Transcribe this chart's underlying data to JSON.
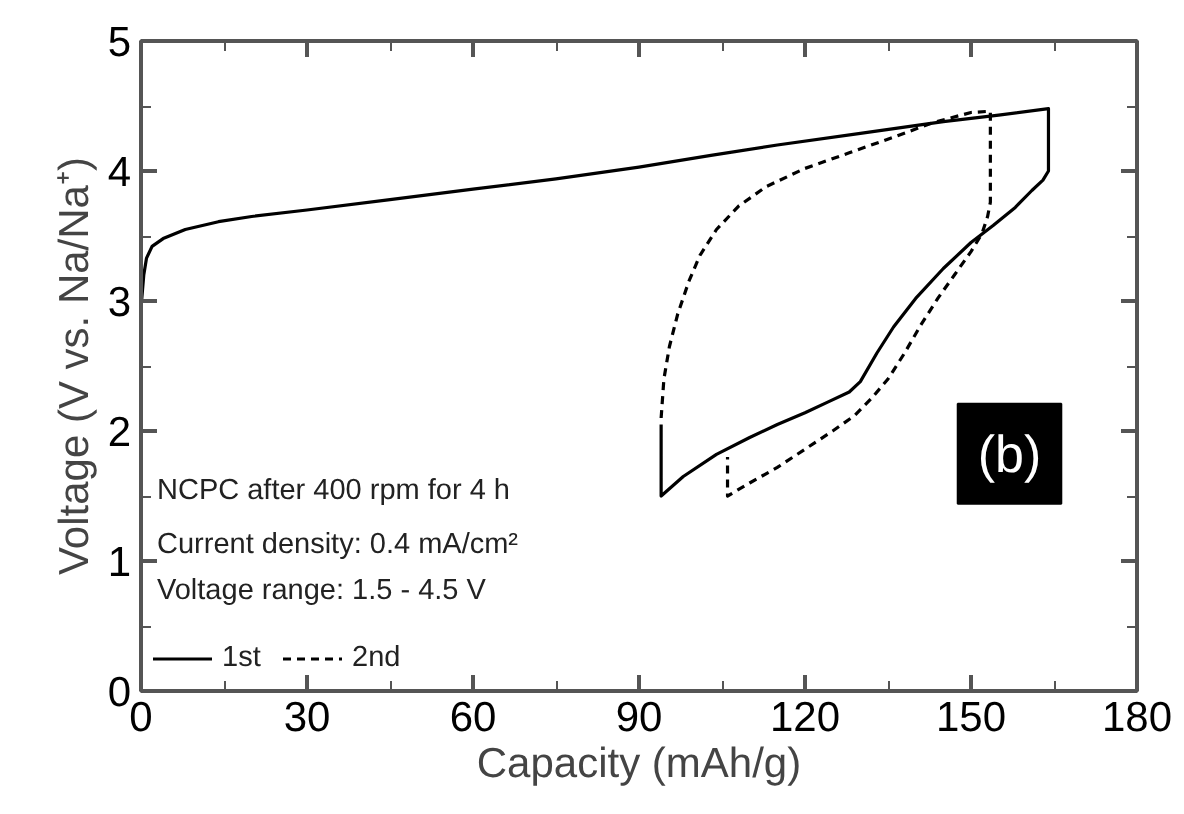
{
  "chart_data": {
    "type": "line",
    "xlabel": "Capacity (mAh/g)",
    "ylabel": "Voltage (V vs. Na/Na⁺)",
    "xlim": [
      0,
      180
    ],
    "xticks": [
      0,
      30,
      60,
      90,
      120,
      150,
      180
    ],
    "ylim": [
      0,
      5
    ],
    "yticks": [
      0,
      1,
      2,
      3,
      4,
      5
    ],
    "grid": false,
    "legend": "bottom left",
    "series": [
      {
        "name": "1st",
        "color": "#000000",
        "line_style": "solid",
        "x": [
          0,
          0.5,
          1,
          2,
          4,
          8,
          14,
          20,
          30,
          45,
          60,
          75,
          90,
          103,
          115,
          130,
          145,
          155,
          164,
          164,
          163,
          161,
          158,
          154,
          150,
          145,
          140,
          136,
          133,
          130,
          128,
          124,
          120,
          115,
          110,
          104,
          98,
          94,
          94
        ],
        "values": [
          2.95,
          3.2,
          3.33,
          3.42,
          3.48,
          3.55,
          3.61,
          3.65,
          3.7,
          3.78,
          3.86,
          3.94,
          4.03,
          4.12,
          4.2,
          4.29,
          4.38,
          4.43,
          4.48,
          4.0,
          3.93,
          3.85,
          3.72,
          3.58,
          3.45,
          3.25,
          3.02,
          2.8,
          2.6,
          2.38,
          2.3,
          2.22,
          2.14,
          2.05,
          1.95,
          1.82,
          1.65,
          1.5,
          2.05
        ]
      },
      {
        "name": "2nd",
        "color": "#000000",
        "line_style": "dashed",
        "x": [
          94,
          94.5,
          95.5,
          97,
          99,
          101,
          104,
          108,
          113,
          120,
          128,
          136,
          143,
          150,
          153.5,
          153.5,
          153,
          152,
          150,
          147,
          144,
          141,
          138,
          135,
          132,
          129,
          125,
          120,
          115,
          110,
          106,
          106
        ],
        "values": [
          2.1,
          2.4,
          2.65,
          2.9,
          3.15,
          3.35,
          3.55,
          3.73,
          3.88,
          4.02,
          4.14,
          4.26,
          4.37,
          4.45,
          4.46,
          3.76,
          3.65,
          3.52,
          3.38,
          3.2,
          3.02,
          2.82,
          2.6,
          2.4,
          2.25,
          2.12,
          2.0,
          1.86,
          1.72,
          1.6,
          1.5,
          1.8
        ]
      }
    ],
    "annotations": [
      "NCPC after 400 rpm for 4 h",
      "Current density: 0.4 mA/cm²",
      "Voltage range: 1.5 - 4.5 V",
      "(b)"
    ]
  }
}
